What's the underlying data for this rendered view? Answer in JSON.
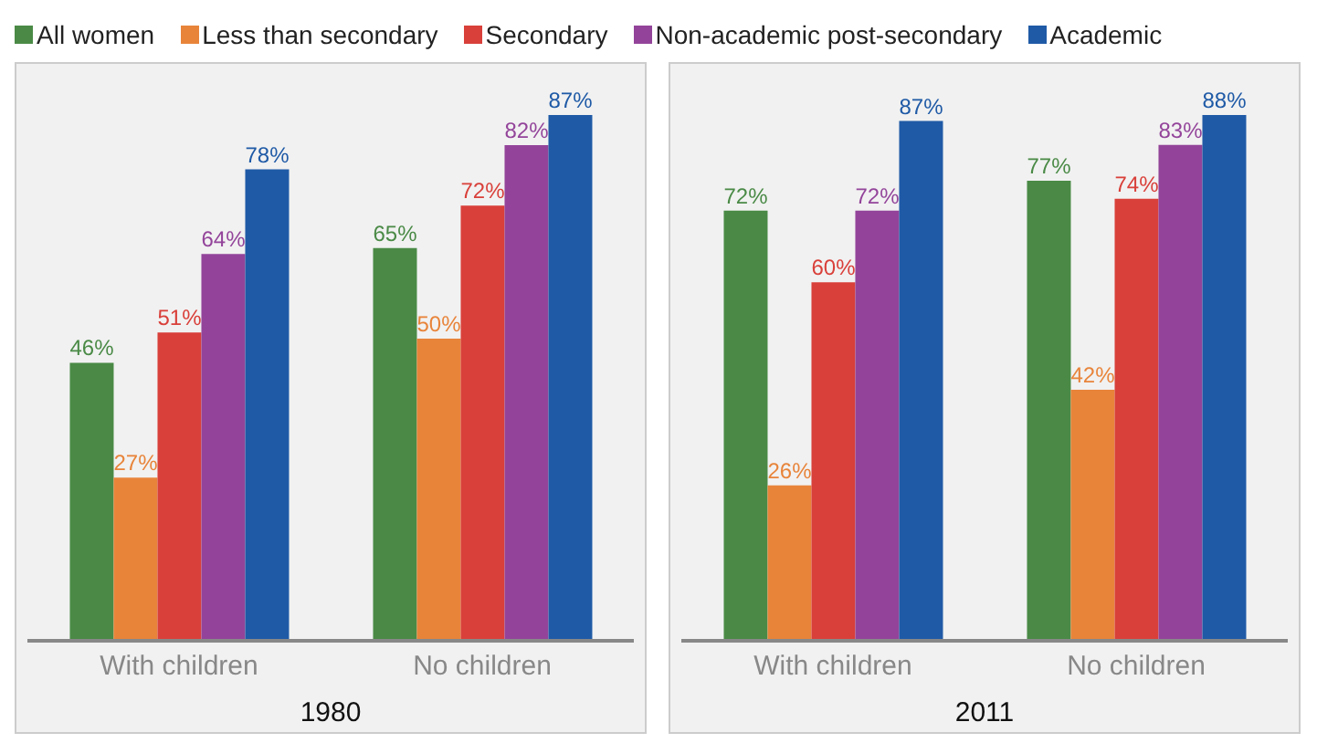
{
  "chart_data": [
    {
      "type": "bar",
      "xlabel": "1980",
      "categories": [
        "With children",
        "No children"
      ],
      "legend": "top",
      "series": [
        {
          "name": "All women",
          "color": "#4a8a46",
          "values": [
            46,
            65
          ],
          "value_labels": [
            "46%",
            "65%"
          ]
        },
        {
          "name": "Less than secondary",
          "color": "#e8843a",
          "values": [
            27,
            50
          ],
          "value_labels": [
            "27%",
            "50%"
          ]
        },
        {
          "name": "Secondary",
          "color": "#d9403a",
          "values": [
            51,
            72
          ],
          "value_labels": [
            "51%",
            "72%"
          ]
        },
        {
          "name": "Non-academic post-secondary",
          "color": "#93449a",
          "values": [
            64,
            82
          ],
          "value_labels": [
            "64%",
            "82%"
          ]
        },
        {
          "name": "Academic",
          "color": "#1f5aa6",
          "values": [
            78,
            87
          ],
          "value_labels": [
            "78%",
            "87%"
          ]
        }
      ]
    },
    {
      "type": "bar",
      "xlabel": "2011",
      "categories": [
        "With children",
        "No children"
      ],
      "series": [
        {
          "color": "#4a8a46",
          "values": [
            72,
            77
          ],
          "value_labels": [
            "72%",
            "77%"
          ]
        },
        {
          "color": "#e8843a",
          "values": [
            26,
            42
          ],
          "value_labels": [
            "26%",
            "42%"
          ]
        },
        {
          "color": "#d9403a",
          "values": [
            60,
            74
          ],
          "value_labels": [
            "60%",
            "74%"
          ]
        },
        {
          "color": "#93449a",
          "values": [
            72,
            83
          ],
          "value_labels": [
            "72%",
            "83%"
          ]
        },
        {
          "color": "#1f5aa6",
          "values": [
            87,
            88
          ],
          "value_labels": [
            "87%",
            "88%"
          ]
        }
      ]
    }
  ]
}
